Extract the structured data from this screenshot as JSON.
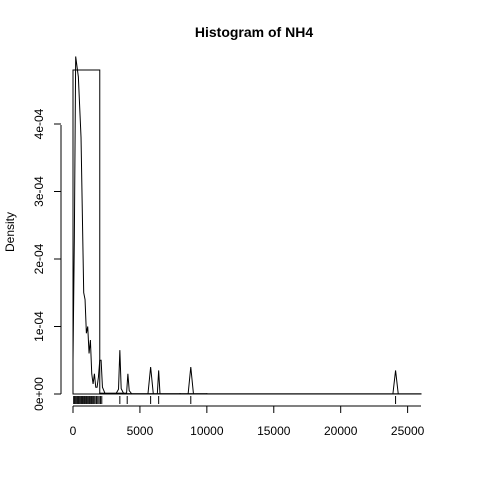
{
  "chart_data": {
    "type": "histogram",
    "title": "Histogram of  NH4",
    "xlabel": "",
    "ylabel": "Density",
    "xlim": [
      0,
      26000
    ],
    "ylim": [
      0,
      0.00048
    ],
    "x_ticks": [
      0,
      5000,
      10000,
      15000,
      20000,
      25000
    ],
    "x_tick_labels": [
      "0",
      "5000",
      "10000",
      "15000",
      "20000",
      "25000"
    ],
    "y_ticks": [
      0,
      0.0001,
      0.0002,
      0.0003,
      0.0004
    ],
    "y_tick_labels": [
      "0e+00",
      "1e-04",
      "2e-04",
      "3e-04",
      "4e-04"
    ],
    "bins": [
      {
        "x0": 0,
        "x1": 2000,
        "density": 0.00048
      },
      {
        "x0": 2000,
        "x1": 4000,
        "density": 1.2e-06
      },
      {
        "x0": 4000,
        "x1": 6000,
        "density": 5e-07
      },
      {
        "x0": 6000,
        "x1": 8000,
        "density": 5e-07
      },
      {
        "x0": 8000,
        "x1": 10000,
        "density": 5e-07
      },
      {
        "x0": 10000,
        "x1": 26000,
        "density": 3e-07
      }
    ],
    "density_curve": [
      [
        0,
        5e-05
      ],
      [
        100,
        0.00023
      ],
      [
        200,
        0.0005
      ],
      [
        400,
        0.00047
      ],
      [
        600,
        0.00038
      ],
      [
        800,
        0.00015
      ],
      [
        900,
        0.00014
      ],
      [
        1000,
        9e-05
      ],
      [
        1100,
        0.0001
      ],
      [
        1200,
        6e-05
      ],
      [
        1300,
        8e-05
      ],
      [
        1400,
        3e-05
      ],
      [
        1500,
        1.5e-05
      ],
      [
        1600,
        3e-05
      ],
      [
        1700,
        1e-05
      ],
      [
        1800,
        1e-05
      ],
      [
        1900,
        2.5e-05
      ],
      [
        2000,
        5e-05
      ],
      [
        2100,
        5e-05
      ],
      [
        2200,
        1e-05
      ],
      [
        2400,
        5e-07
      ],
      [
        3200,
        0.0
      ],
      [
        3400,
        7e-06
      ],
      [
        3500,
        6.5e-05
      ],
      [
        3600,
        8e-06
      ],
      [
        3800,
        0.0
      ],
      [
        4000,
        5e-07
      ],
      [
        4100,
        3e-05
      ],
      [
        4200,
        5e-06
      ],
      [
        4400,
        0.0
      ],
      [
        5600,
        0.0
      ],
      [
        5800,
        4e-05
      ],
      [
        6000,
        0.0
      ],
      [
        6300,
        0.0
      ],
      [
        6400,
        3.5e-05
      ],
      [
        6500,
        0.0
      ],
      [
        8600,
        0.0
      ],
      [
        8800,
        4e-05
      ],
      [
        9000,
        0.0
      ],
      [
        23900,
        0.0
      ],
      [
        24100,
        3.5e-05
      ],
      [
        24300,
        0.0
      ],
      [
        26000,
        0.0
      ]
    ],
    "rug": [
      50,
      120,
      200,
      280,
      350,
      420,
      500,
      580,
      650,
      720,
      800,
      870,
      950,
      1020,
      1100,
      1180,
      1250,
      1330,
      1400,
      1480,
      1560,
      1650,
      1750,
      1850,
      1950,
      2050,
      2150,
      3500,
      4050,
      5800,
      6400,
      8800,
      24100
    ]
  }
}
